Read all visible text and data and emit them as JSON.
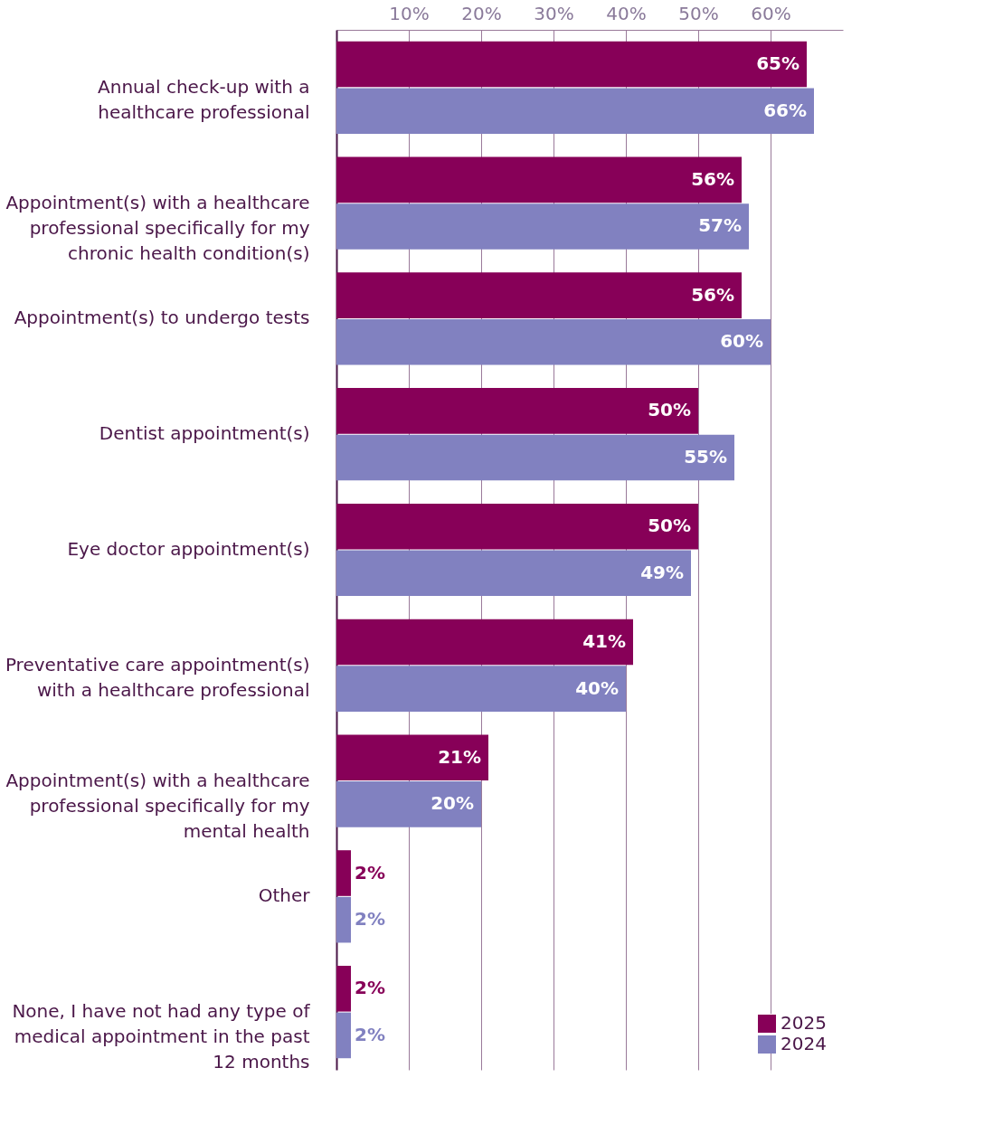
{
  "chart_data": {
    "type": "bar",
    "orientation": "horizontal",
    "categories": [
      "Annual check-up with a healthcare professional",
      "Appointment(s) with a healthcare professional specifically for my chronic health condition(s)",
      "Appointment(s) to undergo tests",
      "Dentist appointment(s)",
      "Eye doctor appointment(s)",
      "Preventative care appointment(s) with a healthcare professional",
      "Appointment(s) with a healthcare professional specifically for my mental health",
      "Other",
      "None, I have not had any type of medical appointment in the past 12 months"
    ],
    "series": [
      {
        "name": "2025",
        "color": "#870058",
        "values": [
          65,
          56,
          56,
          50,
          50,
          41,
          21,
          2,
          2
        ],
        "value_labels": [
          "65%",
          "56%",
          "56%",
          "50%",
          "50%",
          "41%",
          "21%",
          "2%",
          "2%"
        ]
      },
      {
        "name": "2024",
        "color": "#8181c0",
        "values": [
          66,
          57,
          60,
          55,
          49,
          40,
          20,
          2,
          2
        ],
        "value_labels": [
          "66%",
          "57%",
          "60%",
          "55%",
          "49%",
          "40%",
          "20%",
          "2%",
          "2%"
        ]
      }
    ],
    "xlim": [
      0,
      70
    ],
    "xticks": [
      {
        "value": 10,
        "label": "10%"
      },
      {
        "value": 20,
        "label": "20%"
      },
      {
        "value": 30,
        "label": "30%"
      },
      {
        "value": 40,
        "label": "40%"
      },
      {
        "value": 50,
        "label": "50%"
      },
      {
        "value": 60,
        "label": "60%"
      }
    ],
    "grid": "x",
    "legend": "bottom right"
  }
}
